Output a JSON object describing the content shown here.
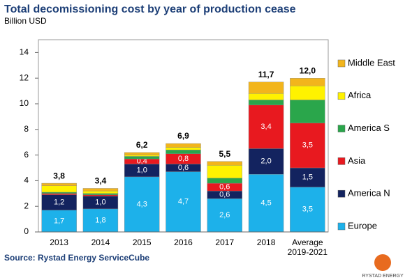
{
  "chart_data": {
    "type": "stacked_bar",
    "title": "Total decomissioning cost by year of production cease",
    "subtitle": "Billion USD",
    "source": "Source: Rystad Energy ServiceCube",
    "logo": "RYSTAD ENERGY",
    "categories": [
      "2013",
      "2014",
      "2015",
      "2016",
      "2017",
      "2018",
      "Average 2019-2021"
    ],
    "series": [
      {
        "name": "Europe",
        "color": "#1db1ea",
        "values": [
          1.7,
          1.8,
          4.3,
          4.7,
          2.6,
          4.5,
          3.5
        ],
        "value_labels": [
          "1,7",
          "1,8",
          "4,3",
          "4,7",
          "2,6",
          "4,5",
          "3,5"
        ]
      },
      {
        "name": "America N",
        "color": "#13235f",
        "values": [
          1.2,
          1.0,
          1.0,
          0.6,
          0.6,
          2.0,
          1.5
        ],
        "value_labels": [
          "1,2",
          "1,0",
          "1,0",
          "0,6",
          "0,6",
          "2,0",
          "1,5"
        ]
      },
      {
        "name": "Asia",
        "color": "#e8191f",
        "values": [
          0.1,
          0.1,
          0.4,
          0.8,
          0.6,
          3.4,
          3.5
        ],
        "value_labels": [
          null,
          null,
          "0,4",
          "0,8",
          "0,6",
          "3,4",
          "3,5"
        ]
      },
      {
        "name": "America S",
        "color": "#2aa64b",
        "values": [
          0.1,
          0.1,
          0.2,
          0.3,
          0.4,
          0.4,
          1.8
        ]
      },
      {
        "name": "Africa",
        "color": "#fff200",
        "values": [
          0.5,
          0.2,
          0.1,
          0.2,
          1.0,
          0.5,
          1.1
        ]
      },
      {
        "name": "Middle East",
        "color": "#f2b51c",
        "values": [
          0.2,
          0.2,
          0.2,
          0.3,
          0.3,
          0.9,
          0.6
        ]
      }
    ],
    "totals": {
      "values": [
        3.8,
        3.4,
        6.2,
        6.9,
        5.5,
        11.7,
        12.0
      ],
      "value_labels": [
        "3,8",
        "3,4",
        "6,2",
        "6,9",
        "5,5",
        "11,7",
        "12,0"
      ]
    },
    "ylim": [
      0,
      15
    ],
    "yticks": [
      0,
      2,
      4,
      6,
      8,
      10,
      12,
      14
    ],
    "legend": "right"
  }
}
